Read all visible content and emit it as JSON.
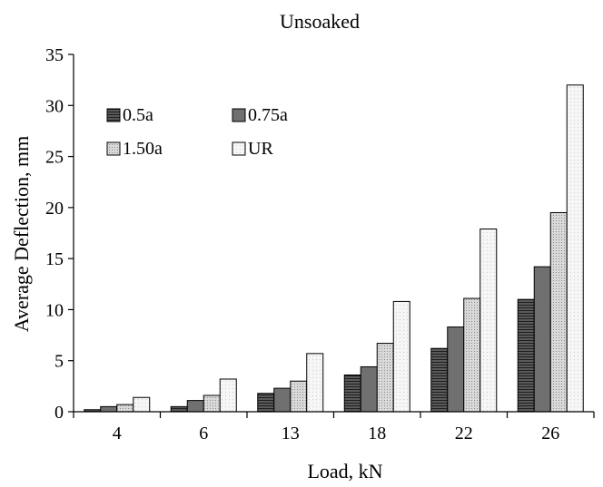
{
  "chart_data": {
    "type": "bar",
    "title": "Unsoaked",
    "xlabel": "Load, kN",
    "ylabel": "Average Deflection, mm",
    "categories": [
      "4",
      "6",
      "13",
      "18",
      "22",
      "26"
    ],
    "ylim": [
      0,
      35
    ],
    "yticks": [
      "0",
      "5",
      "10",
      "15",
      "20",
      "25",
      "30",
      "35"
    ],
    "grid": false,
    "legend_position": "top-left",
    "series": [
      {
        "name": "0.5a",
        "values": [
          0.2,
          0.5,
          1.8,
          3.6,
          6.2,
          11.0
        ],
        "color": "#4d4d4d",
        "pattern": "horizontal-lines"
      },
      {
        "name": "0.75a",
        "values": [
          0.5,
          1.1,
          2.3,
          4.4,
          8.3,
          14.2
        ],
        "color": "#707070",
        "pattern": "solid"
      },
      {
        "name": "1.50a",
        "values": [
          0.7,
          1.6,
          3.0,
          6.7,
          11.1,
          19.5
        ],
        "color": "#cfcfcf",
        "pattern": "dots"
      },
      {
        "name": "UR",
        "values": [
          1.4,
          3.2,
          5.7,
          10.8,
          17.9,
          32.0
        ],
        "color": "#f3f3f3",
        "pattern": "light-dots"
      }
    ]
  }
}
